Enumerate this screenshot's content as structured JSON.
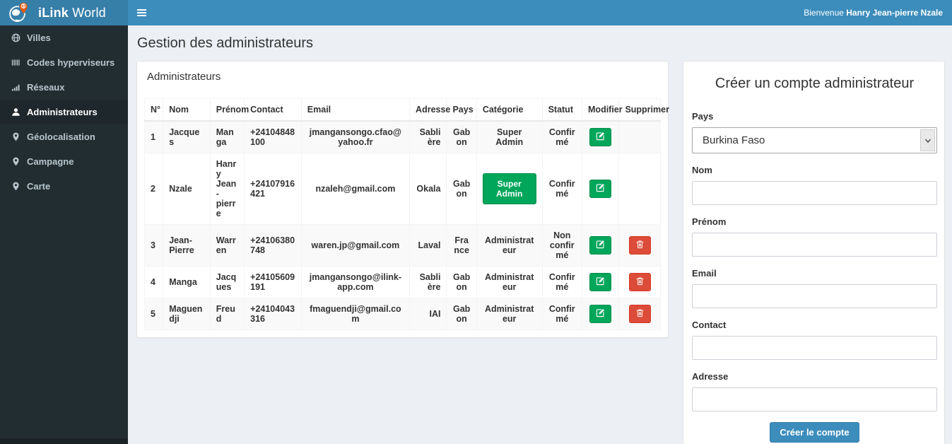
{
  "header": {
    "brand_bold": "iLink",
    "brand_regular": " World",
    "welcome_prefix": "Bienvenue ",
    "welcome_name": "Hanry Jean-pierre Nzale"
  },
  "sidebar": {
    "items": [
      {
        "label": "Villes",
        "icon": "globe-icon",
        "active": false
      },
      {
        "label": "Codes hyperviseurs",
        "icon": "barcode-icon",
        "active": false
      },
      {
        "label": "Réseaux",
        "icon": "signal-icon",
        "active": false
      },
      {
        "label": "Administrateurs",
        "icon": "user-icon",
        "active": true
      },
      {
        "label": "Géolocalisation",
        "icon": "map-marker-icon",
        "active": false
      },
      {
        "label": "Campagne",
        "icon": "map-marker-icon",
        "active": false
      },
      {
        "label": "Carte",
        "icon": "map-marker-icon",
        "active": false
      }
    ]
  },
  "page": {
    "title": "Gestion des administrateurs"
  },
  "admin_panel": {
    "title": "Administrateurs",
    "table": {
      "headers": [
        "N°",
        "Nom",
        "Prénom",
        "Contact",
        "Email",
        "Adresse",
        "Pays",
        "Catégorie",
        "Statut",
        "Modifier",
        "Supprimer"
      ],
      "rows": [
        {
          "num": "1",
          "nom": "Jacques",
          "prenom": "Manga",
          "contact": "+24104848100",
          "email": "jmangansongo.cfao@yahoo.fr",
          "adresse": "Sablière",
          "pays": "Gabon",
          "categorie": "Super Admin",
          "categorie_style": "text",
          "statut": "Confirmé",
          "can_delete": false
        },
        {
          "num": "2",
          "nom": "Nzale",
          "prenom": "Hanry Jean-pierre",
          "contact": "+24107916421",
          "email": "nzaleh@gmail.com",
          "adresse": "Okala",
          "pays": "Gabon",
          "categorie": "Super Admin",
          "categorie_style": "button",
          "statut": "Confirmé",
          "can_delete": false
        },
        {
          "num": "3",
          "nom": "Jean-Pierre",
          "prenom": "Warren",
          "contact": "+24106380748",
          "email": "waren.jp@gmail.com",
          "adresse": "Laval",
          "pays": "France",
          "categorie": "Administrateur",
          "categorie_style": "text",
          "statut": "Non confirmé",
          "can_delete": true
        },
        {
          "num": "4",
          "nom": "Manga",
          "prenom": "Jacques",
          "contact": "+24105609191",
          "email": "jmangansongo@ilink-app.com",
          "adresse": "Sablière",
          "pays": "Gabon",
          "categorie": "Administrateur",
          "categorie_style": "text",
          "statut": "Confirmé",
          "can_delete": true
        },
        {
          "num": "5",
          "nom": "Maguendji",
          "prenom": "Freud",
          "contact": "+24104043316",
          "email": "fmaguendji@gmail.com",
          "adresse": "IAI",
          "pays": "Gabon",
          "categorie": "Administrateur",
          "categorie_style": "text",
          "statut": "Confirmé",
          "can_delete": true
        }
      ]
    }
  },
  "form": {
    "title": "Créer un compte administrateur",
    "fields": [
      {
        "label": "Pays",
        "type": "select",
        "value": "Burkina Faso",
        "name": "pays"
      },
      {
        "label": "Nom",
        "type": "text",
        "value": "",
        "name": "nom"
      },
      {
        "label": "Prénom",
        "type": "text",
        "value": "",
        "name": "prenom"
      },
      {
        "label": "Email",
        "type": "text",
        "value": "",
        "name": "email"
      },
      {
        "label": "Contact",
        "type": "text",
        "value": "",
        "name": "contact"
      },
      {
        "label": "Adresse",
        "type": "text",
        "value": "",
        "name": "adresse"
      }
    ],
    "submit_label": "Créer le compte"
  },
  "colors": {
    "header_blue": "#3c8dbc",
    "logo_blue": "#367fa9",
    "sidebar_dark": "#222d32",
    "sidebar_active": "#1e282c",
    "content_bg": "#ecf0f5",
    "success_green": "#00a65a",
    "danger_red": "#dd4b39",
    "pin_orange": "#e8590c"
  }
}
